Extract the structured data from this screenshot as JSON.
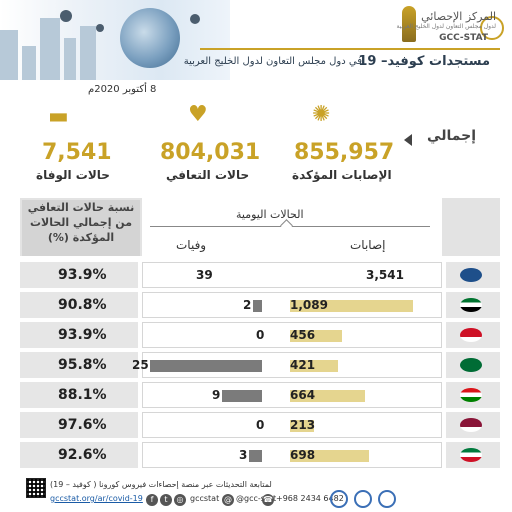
{
  "header": {
    "title": "مستجدات كوفيد– 19",
    "subtitle": "في دول مجلس التعاون لدول الخليج العربية",
    "logo_arabic": "المركز الإحصائي",
    "logo_sub": "لدول مجلس التعاون لدول الخليج العربية",
    "logo_english": "GCC-STAT"
  },
  "date": "8 أكتوبر 2020م",
  "summary": {
    "total_label": "إجمالي",
    "confirmed": {
      "value": "855,957",
      "label": "الإصابات المؤكدة",
      "icon": "virus-icon"
    },
    "recovered": {
      "value": "804,031",
      "label": "حالات التعافي",
      "icon": "heart-pulse-icon"
    },
    "deaths": {
      "value": "7,541",
      "label": "حالات الوفاة",
      "icon": "bed-icon"
    }
  },
  "table": {
    "daily_header": "الحالات اليومية",
    "col_cases": "إصابات",
    "col_deaths": "وفيات",
    "recovery_header": "نسبة حالات التعافي من إجمالي الحالات المؤكدة (%)",
    "rows": [
      {
        "country": "gcc",
        "cases": "3,541",
        "deaths": "39",
        "recovery": "93.9%",
        "cases_val": 3541,
        "deaths_val": 39
      },
      {
        "country": "uae",
        "cases": "1,089",
        "deaths": "2",
        "recovery": "90.8%",
        "cases_val": 1089,
        "deaths_val": 2
      },
      {
        "country": "bahrain",
        "cases": "456",
        "deaths": "0",
        "recovery": "93.9%",
        "cases_val": 456,
        "deaths_val": 0
      },
      {
        "country": "saudi",
        "cases": "421",
        "deaths": "25",
        "recovery": "95.8%",
        "cases_val": 421,
        "deaths_val": 25
      },
      {
        "country": "oman",
        "cases": "664",
        "deaths": "9",
        "recovery": "88.1%",
        "cases_val": 664,
        "deaths_val": 9
      },
      {
        "country": "qatar",
        "cases": "213",
        "deaths": "0",
        "recovery": "97.6%",
        "cases_val": 213,
        "deaths_val": 0
      },
      {
        "country": "kuwait",
        "cases": "698",
        "deaths": "3",
        "recovery": "92.6%",
        "cases_val": 698,
        "deaths_val": 3
      }
    ]
  },
  "footer": {
    "text": "لمتابعة التحديثات عبر منصة إحصاءات فيروس كورونا ( كوفيد – 19)",
    "link": "gccstat.org/ar/covid-19",
    "social": "gccstat",
    "twitter": "@gcc-stat",
    "phone": "+968 2434 6482"
  },
  "colors": {
    "gold": "#c9a227",
    "cases_bar": "#e5d58f",
    "deaths_bar": "#7b7b7b"
  }
}
